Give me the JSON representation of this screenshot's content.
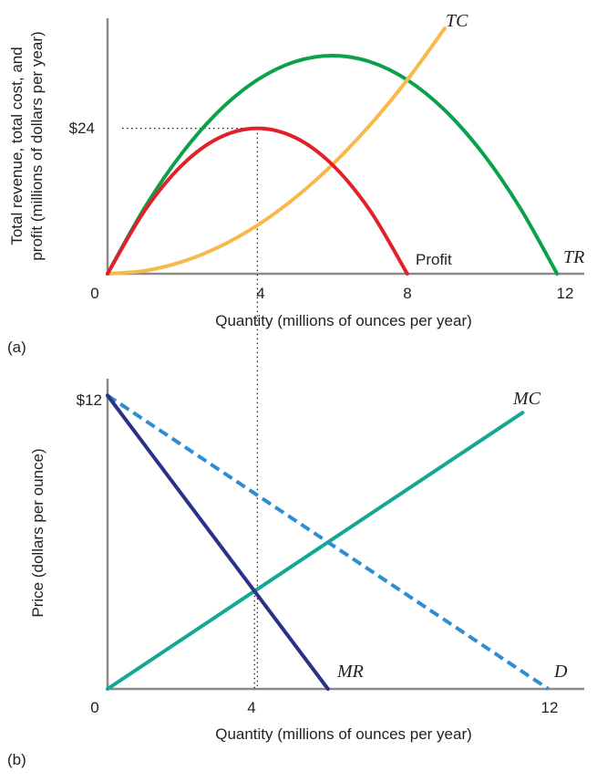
{
  "chart_data": [
    {
      "panel_label": "(a)",
      "type": "line",
      "ylabel": [
        "Total revenue, total cost, and",
        "profit (millions of dollars per year)"
      ],
      "xlabel": "Quantity (millions of ounces per year)",
      "x_ticks": [
        "0",
        "4",
        "8",
        "12"
      ],
      "y_ticks": [
        "$24"
      ],
      "xlim": [
        0,
        12.6
      ],
      "ylim": [
        0,
        41
      ],
      "series": [
        {
          "name": "TR",
          "color": "#0aa14b",
          "x": [
            0,
            1,
            2,
            3,
            4,
            5,
            6,
            7,
            8,
            9,
            10,
            11,
            12
          ],
          "y": [
            0,
            11,
            20,
            27,
            32,
            35,
            36,
            35,
            32,
            27,
            20,
            11,
            0
          ]
        },
        {
          "name": "TC",
          "color": "#f6b94a",
          "x": [
            0,
            1,
            2,
            3,
            4,
            5,
            6,
            7,
            8,
            9
          ],
          "y": [
            0,
            0.5,
            2,
            4.5,
            8,
            12.5,
            18,
            24.5,
            32,
            40.5
          ]
        },
        {
          "name": "Profit",
          "color": "#e2202a",
          "x": [
            0,
            1,
            2,
            3,
            4,
            5,
            6,
            7,
            8
          ],
          "y": [
            0,
            10.5,
            18,
            22.5,
            24,
            22.5,
            18,
            10.5,
            0
          ]
        }
      ],
      "annotations": [
        {
          "type": "guide-horizontal",
          "y": 24,
          "x_from": 0,
          "x_to": 4
        },
        {
          "type": "guide-vertical",
          "x": 4,
          "y_from": 24,
          "y_to": 0
        }
      ]
    },
    {
      "panel_label": "(b)",
      "type": "line",
      "ylabel": "Price (dollars per ounce)",
      "xlabel": "Quantity (millions of ounces per year)",
      "x_ticks": [
        "0",
        "4",
        "12"
      ],
      "y_ticks": [
        "$12"
      ],
      "xlim": [
        0,
        12.6
      ],
      "ylim": [
        0,
        12.6
      ],
      "series": [
        {
          "name": "MC",
          "color": "#12a894",
          "dash": "solid",
          "x": [
            0,
            11.3
          ],
          "y": [
            0,
            11.3
          ]
        },
        {
          "name": "D",
          "color": "#2f8ed0",
          "dash": "dashed",
          "x": [
            0,
            12
          ],
          "y": [
            12,
            0
          ]
        },
        {
          "name": "MR",
          "color": "#2b3186",
          "dash": "solid",
          "x": [
            0,
            6
          ],
          "y": [
            12,
            0
          ]
        }
      ],
      "annotations": [
        {
          "type": "guide-vertical",
          "x": 4,
          "y_from": 4,
          "y_to": 0
        }
      ]
    }
  ]
}
